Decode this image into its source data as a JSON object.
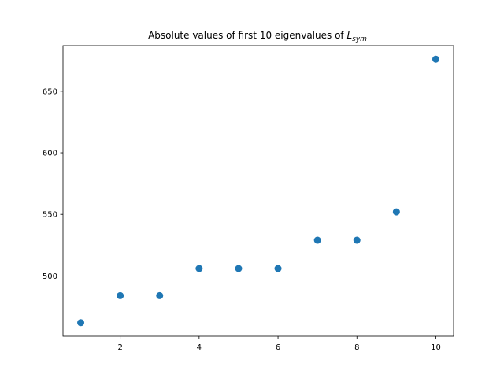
{
  "chart_data": {
    "type": "scatter",
    "title_prefix": "Absolute values of first 10 eigenvalues of ",
    "title_math_base": "L",
    "title_math_sub": "sym",
    "xlabel": "",
    "ylabel": "",
    "xlim": [
      0.55,
      10.45
    ],
    "ylim": [
      451,
      687
    ],
    "xticks": [
      2,
      4,
      6,
      8,
      10
    ],
    "yticks": [
      500,
      550,
      600,
      650
    ],
    "grid": false,
    "point_color": "#1f77b4",
    "series": [
      {
        "x": [
          1,
          2,
          3,
          4,
          5,
          6,
          7,
          8,
          9,
          10
        ],
        "y": [
          462,
          484,
          484,
          506,
          506,
          506,
          529,
          529,
          552,
          676
        ]
      }
    ]
  }
}
